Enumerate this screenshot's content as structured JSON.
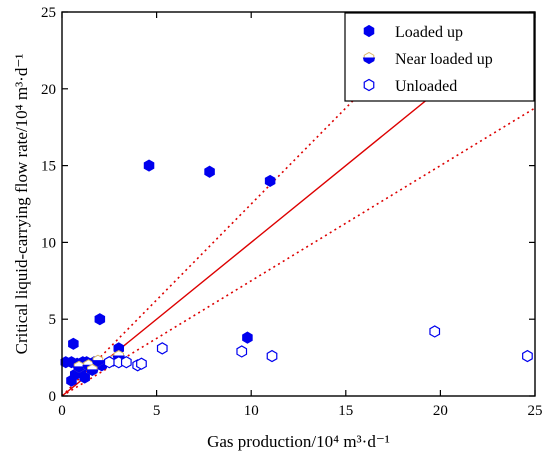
{
  "chart_data": {
    "type": "scatter",
    "xlabel": "Gas production/10⁴ m³·d⁻¹",
    "ylabel": "Critical liquid-carrying flow rate/10⁴ m³·d⁻¹",
    "xlim": [
      0,
      25
    ],
    "ylim": [
      0,
      25
    ],
    "xticks": [
      0,
      5,
      10,
      15,
      20,
      25
    ],
    "yticks": [
      0,
      5,
      10,
      15,
      20,
      25
    ],
    "grid": false,
    "legend_position": "top-right",
    "series": [
      {
        "name": "Loaded up",
        "marker": "hexagon-filled",
        "color": "#0000ee",
        "points": [
          [
            0.2,
            2.2
          ],
          [
            0.5,
            2.2
          ],
          [
            0.6,
            3.4
          ],
          [
            0.5,
            1.0
          ],
          [
            0.7,
            1.4
          ],
          [
            0.8,
            2.1
          ],
          [
            1.0,
            1.7
          ],
          [
            1.1,
            2.2
          ],
          [
            1.2,
            1.2
          ],
          [
            1.3,
            2.2
          ],
          [
            1.5,
            1.9
          ],
          [
            1.7,
            2.2
          ],
          [
            2.0,
            5.0
          ],
          [
            2.1,
            2.0
          ],
          [
            3.0,
            3.1
          ],
          [
            4.6,
            15.0
          ],
          [
            7.8,
            14.6
          ],
          [
            9.8,
            3.8
          ],
          [
            11.0,
            14.0
          ]
        ]
      },
      {
        "name": "Near loaded up",
        "marker": "hexagon-half",
        "color": "#0000ee",
        "points": [
          [
            0.9,
            1.9
          ],
          [
            1.4,
            2.0
          ],
          [
            1.6,
            1.7
          ],
          [
            1.9,
            2.3
          ],
          [
            2.7,
            2.3
          ],
          [
            3.0,
            2.6
          ]
        ]
      },
      {
        "name": "Unloaded",
        "marker": "hexagon-open",
        "color": "#0000ee",
        "points": [
          [
            2.5,
            2.2
          ],
          [
            3.0,
            2.2
          ],
          [
            3.4,
            2.2
          ],
          [
            4.0,
            2.0
          ],
          [
            4.2,
            2.1
          ],
          [
            5.3,
            3.1
          ],
          [
            9.5,
            2.9
          ],
          [
            11.1,
            2.6
          ],
          [
            19.7,
            4.2
          ],
          [
            24.6,
            2.6
          ]
        ]
      }
    ],
    "reference_lines": [
      {
        "style": "solid",
        "color": "#dd0000",
        "from": [
          0,
          0
        ],
        "to": [
          25,
          25
        ]
      },
      {
        "style": "dotted",
        "color": "#dd0000",
        "from": [
          0,
          0
        ],
        "to": [
          25,
          31.25
        ]
      },
      {
        "style": "dotted",
        "color": "#dd0000",
        "from": [
          0,
          0
        ],
        "to": [
          25,
          18.75
        ]
      }
    ]
  }
}
